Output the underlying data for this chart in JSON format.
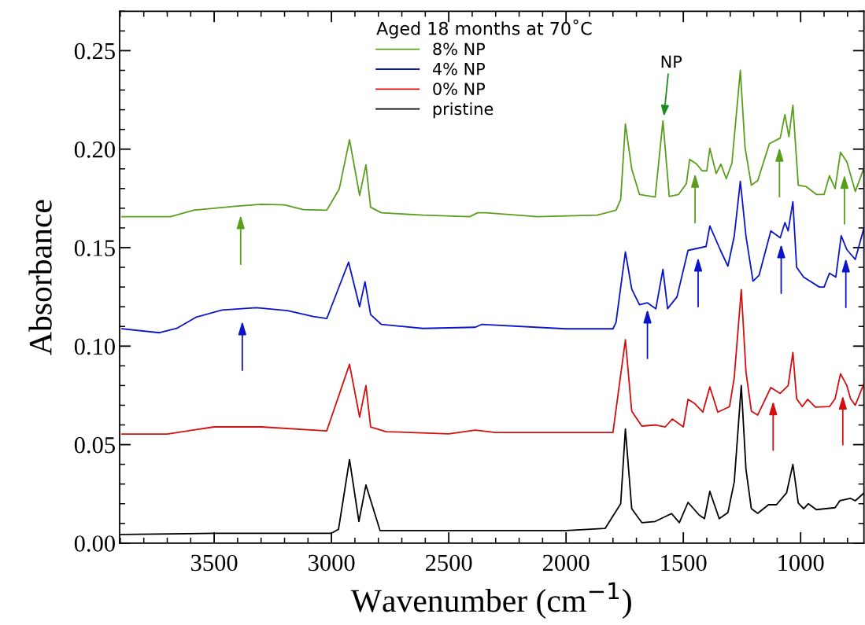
{
  "chart_data": {
    "type": "line",
    "xlabel": "Wavenumber (cm$^{−1}$)",
    "ylabel": "Absorbance",
    "legend_title": "Aged 18 months at 70˚C",
    "legend": "top",
    "xlim": [
      3903,
      730
    ],
    "ylim": [
      0,
      0.27
    ],
    "xticks": [
      3500,
      3000,
      2500,
      2000,
      1500,
      1000
    ],
    "yticks": [
      {
        "value": 0,
        "label": "0.00"
      },
      {
        "value": 0.05,
        "label": "0.05"
      },
      {
        "value": 0.1,
        "label": "0.10"
      },
      {
        "value": 0.15,
        "label": "0.15"
      },
      {
        "value": 0.2,
        "label": "0.20"
      },
      {
        "value": 0.25,
        "label": "0.25"
      }
    ],
    "grid": false,
    "marker": "none",
    "line_style": "solid",
    "series": [
      {
        "name": "8% NP",
        "color": "#5a9e1e",
        "x": [
          3893,
          3687,
          3587,
          3410,
          3300,
          3200,
          3120,
          3020,
          2967,
          2923,
          2880,
          2853,
          2833,
          2787,
          2610,
          2410,
          2377,
          2343,
          2120,
          1867,
          1787,
          1767,
          1747,
          1720,
          1687,
          1620,
          1587,
          1560,
          1520,
          1487,
          1473,
          1443,
          1420,
          1400,
          1387,
          1360,
          1340,
          1317,
          1293,
          1257,
          1237,
          1210,
          1183,
          1133,
          1087,
          1067,
          1050,
          1033,
          1010,
          977,
          933,
          900,
          877,
          853,
          830,
          803,
          767,
          730
        ],
        "values": [
          0.1657,
          0.1657,
          0.169,
          0.171,
          0.172,
          0.1717,
          0.1693,
          0.169,
          0.1797,
          0.2048,
          0.1765,
          0.192,
          0.1705,
          0.1677,
          0.1665,
          0.1657,
          0.1677,
          0.1677,
          0.1657,
          0.1665,
          0.169,
          0.1745,
          0.2128,
          0.19,
          0.177,
          0.1757,
          0.2143,
          0.176,
          0.177,
          0.1825,
          0.1948,
          0.1924,
          0.189,
          0.189,
          0.2004,
          0.1876,
          0.1924,
          0.185,
          0.1928,
          0.24,
          0.2008,
          0.1817,
          0.184,
          0.2028,
          0.2056,
          0.2175,
          0.2063,
          0.2223,
          0.1817,
          0.181,
          0.177,
          0.177,
          0.1865,
          0.18,
          0.1984,
          0.1936,
          0.1785,
          0.1904
        ]
      },
      {
        "name": "4% NP",
        "color": "#0a14c8",
        "x": [
          3893,
          3733,
          3660,
          3577,
          3467,
          3320,
          3187,
          3077,
          3020,
          2927,
          2880,
          2857,
          2833,
          2787,
          2610,
          2387,
          2360,
          2000,
          1800,
          1787,
          1747,
          1720,
          1687,
          1653,
          1617,
          1587,
          1567,
          1527,
          1480,
          1403,
          1387,
          1343,
          1310,
          1283,
          1257,
          1233,
          1203,
          1177,
          1127,
          1087,
          1067,
          1053,
          1033,
          1017,
          987,
          920,
          900,
          877,
          850,
          827,
          803,
          767,
          730
        ],
        "values": [
          0.1088,
          0.1068,
          0.109,
          0.1147,
          0.1183,
          0.1195,
          0.118,
          0.115,
          0.114,
          0.1426,
          0.12,
          0.1327,
          0.116,
          0.111,
          0.109,
          0.1096,
          0.111,
          0.1088,
          0.1088,
          0.112,
          0.1478,
          0.129,
          0.121,
          0.122,
          0.119,
          0.139,
          0.119,
          0.125,
          0.1486,
          0.1506,
          0.161,
          0.149,
          0.1406,
          0.1558,
          0.1837,
          0.1558,
          0.133,
          0.136,
          0.1585,
          0.155,
          0.1627,
          0.1585,
          0.1733,
          0.14,
          0.135,
          0.13,
          0.13,
          0.137,
          0.135,
          0.156,
          0.149,
          0.144,
          0.16
        ]
      },
      {
        "name": "0% NP",
        "color": "#d40f0f",
        "x": [
          3893,
          3700,
          3500,
          3300,
          3020,
          2923,
          2880,
          2853,
          2833,
          2767,
          2500,
          2387,
          2300,
          2000,
          1800,
          1747,
          1720,
          1677,
          1617,
          1577,
          1547,
          1500,
          1480,
          1453,
          1417,
          1387,
          1353,
          1303,
          1283,
          1253,
          1233,
          1210,
          1183,
          1127,
          1087,
          1053,
          1033,
          1017,
          993,
          970,
          937,
          877,
          853,
          830,
          803,
          787,
          767,
          730
        ],
        "values": [
          0.0554,
          0.0554,
          0.059,
          0.059,
          0.057,
          0.0908,
          0.064,
          0.08,
          0.059,
          0.0566,
          0.0555,
          0.0574,
          0.0562,
          0.0562,
          0.0562,
          0.1032,
          0.067,
          0.0594,
          0.06,
          0.059,
          0.063,
          0.059,
          0.073,
          0.071,
          0.0665,
          0.0793,
          0.0665,
          0.0693,
          0.084,
          0.1287,
          0.087,
          0.067,
          0.065,
          0.079,
          0.076,
          0.08,
          0.0968,
          0.0733,
          0.0693,
          0.073,
          0.069,
          0.0693,
          0.0733,
          0.086,
          0.08,
          0.0733,
          0.07,
          0.081
        ]
      },
      {
        "name": "pristine",
        "color": "#000000",
        "x": [
          3903,
          3500,
          3000,
          2970,
          2923,
          2883,
          2853,
          2793,
          2000,
          1833,
          1767,
          1747,
          1720,
          1677,
          1620,
          1550,
          1517,
          1480,
          1433,
          1410,
          1387,
          1347,
          1310,
          1283,
          1253,
          1233,
          1210,
          1183,
          1137,
          1103,
          1060,
          1033,
          1010,
          987,
          967,
          933,
          853,
          833,
          787,
          767,
          730
        ],
        "values": [
          0.0044,
          0.005,
          0.005,
          0.007,
          0.0424,
          0.011,
          0.0295,
          0.0064,
          0.0064,
          0.0075,
          0.02,
          0.0579,
          0.0175,
          0.0104,
          0.011,
          0.015,
          0.0104,
          0.0207,
          0.0143,
          0.0124,
          0.0263,
          0.0124,
          0.0155,
          0.031,
          0.08,
          0.0375,
          0.0175,
          0.0151,
          0.0195,
          0.0195,
          0.0255,
          0.04,
          0.0203,
          0.0175,
          0.02,
          0.017,
          0.018,
          0.0215,
          0.0227,
          0.0215,
          0.0255
        ]
      }
    ],
    "annotations": [
      "NP"
    ]
  }
}
